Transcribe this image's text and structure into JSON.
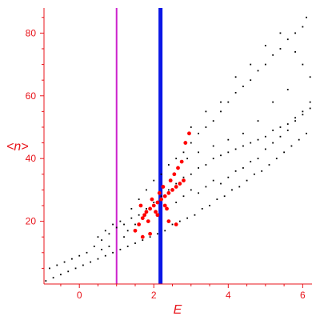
{
  "colors": {
    "axis": "#e8141b",
    "black_points": "#000000",
    "red_points": "#ff0000",
    "line_magenta": "#cc22cc",
    "line_blue": "#0a16e6"
  },
  "chart_data": {
    "type": "scatter",
    "xlabel": "E",
    "ylabel": "<n>",
    "xlim": [
      -0.95,
      6.25
    ],
    "ylim": [
      0,
      88
    ],
    "x_ticks": [
      0,
      2,
      4,
      6
    ],
    "y_ticks": [
      20,
      40,
      60,
      80
    ],
    "grid": false,
    "vertical_lines": [
      {
        "x": 1.0,
        "color": "#cc22cc"
      },
      {
        "x": 2.18,
        "color": "#0a16e6"
      }
    ],
    "series": [
      {
        "color": "#000000",
        "marker": "small-dot",
        "description_points": [
          [
            -0.9,
            1
          ],
          [
            -0.7,
            2
          ],
          [
            -0.5,
            3
          ],
          [
            -0.3,
            4
          ],
          [
            -0.1,
            5
          ],
          [
            0.1,
            6
          ],
          [
            0.3,
            7
          ],
          [
            0.5,
            8
          ],
          [
            0.7,
            9
          ],
          [
            0.9,
            10
          ],
          [
            1.1,
            11
          ],
          [
            1.3,
            12
          ],
          [
            1.5,
            13
          ],
          [
            1.7,
            14
          ],
          [
            1.9,
            15
          ],
          [
            2.1,
            16
          ],
          [
            2.3,
            17
          ],
          [
            2.5,
            19
          ],
          [
            2.7,
            20
          ],
          [
            2.9,
            21
          ],
          [
            3.1,
            22
          ],
          [
            3.3,
            24
          ],
          [
            3.5,
            25
          ],
          [
            3.7,
            27
          ],
          [
            3.9,
            28
          ],
          [
            4.1,
            30
          ],
          [
            4.3,
            31
          ],
          [
            4.5,
            33
          ],
          [
            4.7,
            35
          ],
          [
            4.9,
            36
          ],
          [
            5.1,
            38
          ],
          [
            5.3,
            40
          ],
          [
            5.5,
            42
          ],
          [
            5.7,
            44
          ],
          [
            5.9,
            46
          ],
          [
            6.1,
            48
          ],
          [
            -0.8,
            5
          ],
          [
            -0.6,
            6
          ],
          [
            -0.4,
            7
          ],
          [
            -0.2,
            8
          ],
          [
            0,
            9
          ],
          [
            0.2,
            10
          ],
          [
            0.4,
            12
          ],
          [
            0.6,
            14
          ],
          [
            0.8,
            16
          ],
          [
            1.0,
            18
          ],
          [
            1.2,
            19
          ],
          [
            1.4,
            21
          ],
          [
            1.6,
            22
          ],
          [
            1.8,
            24
          ],
          [
            2.0,
            26
          ],
          [
            2.2,
            28
          ],
          [
            2.4,
            30
          ],
          [
            2.6,
            32
          ],
          [
            2.8,
            34
          ],
          [
            3.0,
            35
          ],
          [
            3.2,
            37
          ],
          [
            3.4,
            38
          ],
          [
            3.6,
            40
          ],
          [
            3.8,
            41
          ],
          [
            4.0,
            42
          ],
          [
            4.2,
            43
          ],
          [
            4.4,
            44
          ],
          [
            4.6,
            45
          ],
          [
            4.8,
            46
          ],
          [
            5.0,
            47
          ],
          [
            5.2,
            49
          ],
          [
            5.4,
            50
          ],
          [
            5.6,
            51
          ],
          [
            5.8,
            53
          ],
          [
            6.0,
            54
          ],
          [
            6.2,
            56
          ],
          [
            0.5,
            15
          ],
          [
            0.7,
            17
          ],
          [
            0.9,
            19
          ],
          [
            1.1,
            20
          ],
          [
            1.3,
            17
          ],
          [
            1.5,
            19
          ],
          [
            1.2,
            15
          ],
          [
            0.8,
            12
          ],
          [
            0.6,
            11
          ],
          [
            1.4,
            24
          ],
          [
            1.6,
            27
          ],
          [
            1.8,
            30
          ],
          [
            2.0,
            33
          ],
          [
            2.2,
            35
          ],
          [
            2.4,
            38
          ],
          [
            2.6,
            40
          ],
          [
            2.8,
            42
          ],
          [
            3.0,
            45
          ],
          [
            3.2,
            48
          ],
          [
            3.4,
            50
          ],
          [
            3.6,
            52
          ],
          [
            3.8,
            55
          ],
          [
            4.0,
            58
          ],
          [
            4.2,
            61
          ],
          [
            4.4,
            63
          ],
          [
            4.6,
            65
          ],
          [
            4.8,
            68
          ],
          [
            5.0,
            70
          ],
          [
            5.2,
            73
          ],
          [
            5.4,
            75
          ],
          [
            5.6,
            78
          ],
          [
            5.8,
            80
          ],
          [
            6.0,
            82
          ],
          [
            6.1,
            85
          ],
          [
            2.6,
            26
          ],
          [
            2.8,
            28
          ],
          [
            3.0,
            30
          ],
          [
            3.2,
            29
          ],
          [
            3.4,
            31
          ],
          [
            3.6,
            33
          ],
          [
            3.8,
            32
          ],
          [
            4.0,
            34
          ],
          [
            4.2,
            36
          ],
          [
            4.4,
            37
          ],
          [
            4.6,
            39
          ],
          [
            4.8,
            40
          ],
          [
            5.0,
            43
          ],
          [
            5.2,
            45
          ],
          [
            5.4,
            47
          ],
          [
            5.6,
            49
          ],
          [
            5.8,
            52
          ],
          [
            6.0,
            55
          ],
          [
            6.2,
            58
          ],
          [
            3.0,
            50
          ],
          [
            3.4,
            55
          ],
          [
            3.8,
            58
          ],
          [
            4.2,
            66
          ],
          [
            4.6,
            70
          ],
          [
            5.0,
            76
          ],
          [
            5.4,
            80
          ],
          [
            5.8,
            74
          ],
          [
            6.0,
            70
          ],
          [
            6.2,
            66
          ],
          [
            5.6,
            62
          ],
          [
            5.2,
            58
          ],
          [
            4.8,
            52
          ],
          [
            4.4,
            48
          ],
          [
            4.0,
            46
          ],
          [
            3.6,
            44
          ],
          [
            3.2,
            42
          ],
          [
            2.9,
            40
          ]
        ]
      },
      {
        "color": "#ff0000",
        "marker": "larger-dot",
        "description_points": [
          [
            1.5,
            17
          ],
          [
            1.6,
            19
          ],
          [
            1.7,
            21
          ],
          [
            1.8,
            23
          ],
          [
            1.9,
            24
          ],
          [
            2.0,
            25
          ],
          [
            2.1,
            26
          ],
          [
            2.2,
            27
          ],
          [
            2.3,
            28
          ],
          [
            2.4,
            29
          ],
          [
            2.5,
            30
          ],
          [
            2.6,
            31
          ],
          [
            2.7,
            32
          ],
          [
            2.8,
            33
          ],
          [
            1.65,
            25
          ],
          [
            1.75,
            22
          ],
          [
            1.85,
            20
          ],
          [
            1.95,
            27
          ],
          [
            2.05,
            23
          ],
          [
            2.15,
            29
          ],
          [
            2.25,
            31
          ],
          [
            2.35,
            24
          ],
          [
            2.45,
            33
          ],
          [
            2.55,
            35
          ],
          [
            2.65,
            37
          ],
          [
            2.75,
            39
          ],
          [
            2.85,
            45
          ],
          [
            2.95,
            48
          ],
          [
            1.7,
            15
          ],
          [
            1.9,
            16
          ],
          [
            2.4,
            20
          ],
          [
            2.6,
            19
          ],
          [
            2.1,
            22
          ],
          [
            2.3,
            25
          ]
        ]
      }
    ]
  }
}
